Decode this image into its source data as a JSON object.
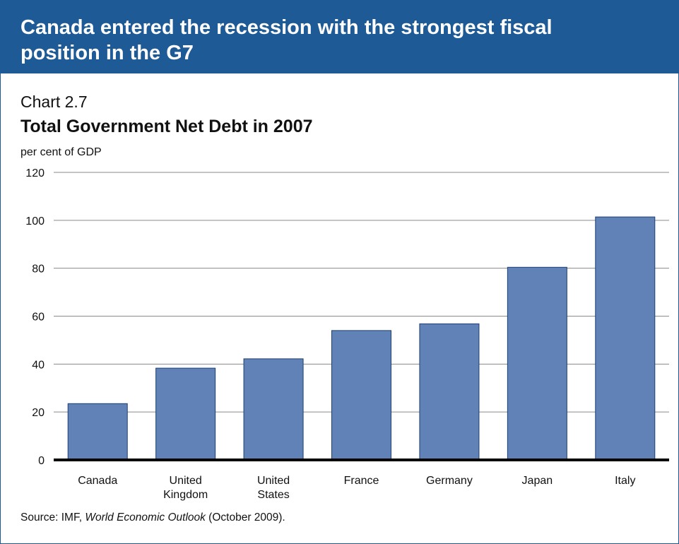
{
  "header": {
    "title": "Canada entered the recession with the strongest fiscal position in the G7"
  },
  "chart_number": "Chart 2.7",
  "source": {
    "prefix": "Source: IMF, ",
    "publication": "World Economic Outlook",
    "suffix": " (October 2009)."
  },
  "colors": {
    "banner": "#1d5a96",
    "bar_fill": "#6182b7",
    "bar_stroke": "#1d3f73",
    "gridline": "#8a8a8a",
    "axis": "#000000"
  },
  "chart_data": {
    "type": "bar",
    "title": "Total Government Net Debt in 2007",
    "xlabel": "",
    "ylabel": "per cent of GDP",
    "categories": [
      [
        "Canada"
      ],
      [
        "United",
        "Kingdom"
      ],
      [
        "United",
        "States"
      ],
      [
        "France"
      ],
      [
        "Germany"
      ],
      [
        "Japan"
      ],
      [
        "Italy"
      ]
    ],
    "values": [
      23.5,
      38.3,
      42.2,
      54,
      56.8,
      80.4,
      101.4
    ],
    "ylim": [
      0,
      120
    ],
    "yticks": [
      0,
      20,
      40,
      60,
      80,
      100,
      120
    ],
    "grid": true,
    "legend": "none"
  }
}
